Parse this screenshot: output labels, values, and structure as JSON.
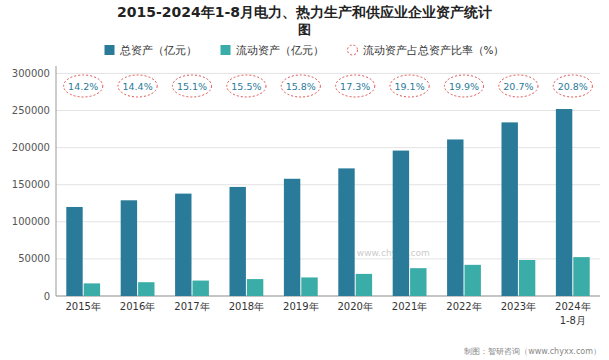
{
  "chart_data": {
    "type": "bar",
    "title": "2015-2024年1-8月电力、热力生产和供应业企业资产统计",
    "subtitle": "图",
    "categories": [
      "2015年",
      "2016年",
      "2017年",
      "2018年",
      "2019年",
      "2020年",
      "2021年",
      "2022年",
      "2023年",
      "2024年"
    ],
    "series": [
      {
        "name": "总资产（亿元）",
        "color": "#2a7a9a",
        "values": [
          120000,
          129000,
          138000,
          147000,
          158000,
          172000,
          196000,
          211000,
          234000,
          252000
        ]
      },
      {
        "name": "流动资产（亿元）",
        "color": "#3aada8",
        "values": [
          17000,
          18600,
          20800,
          22800,
          25000,
          29800,
          37500,
          42000,
          48500,
          52400
        ]
      },
      {
        "name": "流动资产占总资产比率（%）",
        "type": "label",
        "color": "#e05050",
        "data_labels": true,
        "values": [
          14.2,
          14.4,
          15.1,
          15.5,
          15.8,
          17.3,
          19.1,
          19.9,
          20.7,
          20.8
        ],
        "value_labels": [
          "14.2%",
          "14.4%",
          "15.1%",
          "15.5%",
          "15.8%",
          "17.3%",
          "19.1%",
          "19.9%",
          "20.7%",
          "20.8%"
        ]
      }
    ],
    "annotations": [
      "1-8月",
      "制图：智研咨询（www.chyxx.com）",
      "www.chyxx.com"
    ],
    "ylim": [
      0,
      310000
    ],
    "yticks": [
      0,
      50000,
      100000,
      150000,
      200000,
      250000,
      300000
    ],
    "grid": true,
    "legend": "top"
  }
}
